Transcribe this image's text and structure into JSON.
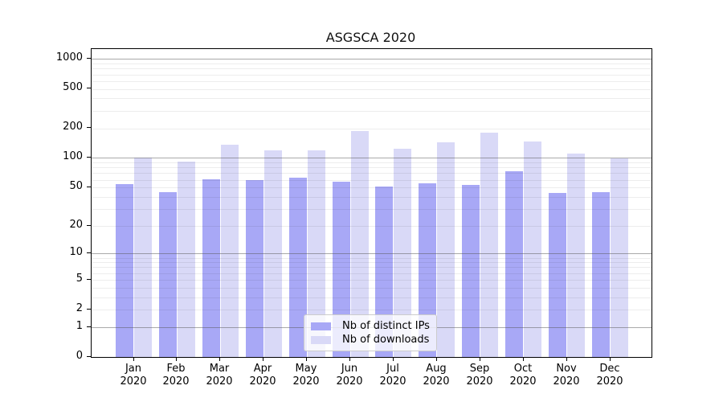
{
  "title": "ASGSCA 2020",
  "chart_data": {
    "type": "bar",
    "title": "ASGSCA 2020",
    "scale": "log10(1+x)",
    "grid": true,
    "legend_position": "inside-bottom-center",
    "ylim": [
      0,
      1259
    ],
    "y_ticks": [
      0,
      1,
      2,
      5,
      10,
      20,
      50,
      100,
      200,
      500,
      1000
    ],
    "y_major_gridlines": [
      1,
      10,
      100,
      1000
    ],
    "y_minor_gridlines": [
      2,
      3,
      4,
      5,
      6,
      7,
      8,
      9,
      20,
      30,
      40,
      50,
      60,
      70,
      80,
      90,
      200,
      300,
      400,
      500,
      600,
      700,
      800,
      900
    ],
    "months": [
      "Jan",
      "Feb",
      "Mar",
      "Apr",
      "May",
      "Jun",
      "Jul",
      "Aug",
      "Sep",
      "Oct",
      "Nov",
      "Dec"
    ],
    "year_label": "2020",
    "categories": [
      "Jan 2020",
      "Feb 2020",
      "Mar 2020",
      "Apr 2020",
      "May 2020",
      "Jun 2020",
      "Jul 2020",
      "Aug 2020",
      "Sep 2020",
      "Oct 2020",
      "Nov 2020",
      "Dec 2020"
    ],
    "series": [
      {
        "name": "Nb of distinct IPs",
        "color": "#a8a8f6",
        "values": [
          54,
          45,
          61,
          60,
          63,
          57,
          51,
          55,
          53,
          73,
          44,
          45
        ]
      },
      {
        "name": "Nb of downloads",
        "color": "#d9d9f7",
        "values": [
          101,
          92,
          137,
          119,
          120,
          187,
          123,
          145,
          179,
          148,
          111,
          99
        ]
      }
    ]
  },
  "colors": {
    "bar_distinct_ips": "#a8a8f6",
    "bar_downloads": "#d9d9f7",
    "major_grid": "#aaaaaa",
    "minor_grid": "#ededed",
    "axis": "#000000"
  }
}
